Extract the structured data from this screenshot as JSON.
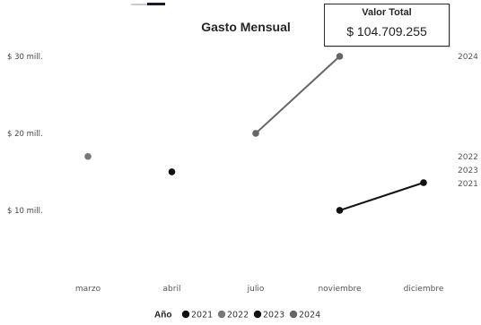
{
  "chart_data": {
    "type": "line",
    "title": "Gasto Mensual",
    "categories": [
      "marzo",
      "abril",
      "julio",
      "noviembre",
      "diciembre"
    ],
    "y_ticks": [
      "$ 10 mill.",
      "$ 20 mill.",
      "$ 30 mill."
    ],
    "ylim": [
      5,
      31.5
    ],
    "grid": false,
    "legend": {
      "title": "Año",
      "position": "bottom",
      "entries": [
        {
          "label": "2021",
          "color": "#111111"
        },
        {
          "label": "2022",
          "color": "#777777"
        },
        {
          "label": "2023",
          "color": "#111111"
        },
        {
          "label": "2024",
          "color": "#666666"
        }
      ]
    },
    "series": [
      {
        "name": "2021",
        "color": "#111111",
        "points": [
          {
            "x": "abril",
            "y": 15
          },
          {
            "x": "noviembre",
            "y": 10
          },
          {
            "x": "diciembre",
            "y": 13.6
          }
        ]
      },
      {
        "name": "2022",
        "color": "#777777",
        "points": [
          {
            "x": "marzo",
            "y": 17
          }
        ]
      },
      {
        "name": "2024",
        "color": "#666666",
        "points": [
          {
            "x": "julio",
            "y": 20
          },
          {
            "x": "noviembre",
            "y": 30
          }
        ]
      }
    ],
    "connections": [
      {
        "series": "2024",
        "from": "julio",
        "to": "noviembre"
      },
      {
        "series": "2021",
        "from": "noviembre",
        "to": "diciembre"
      }
    ],
    "end_labels": [
      {
        "text": "2024",
        "y": 30
      },
      {
        "text": "2022",
        "y": 17
      },
      {
        "text": "2023",
        "y": 15.2
      },
      {
        "text": "2021",
        "y": 13.5
      }
    ]
  },
  "card": {
    "title": "Valor Total",
    "value": "$ 104.709.255"
  }
}
